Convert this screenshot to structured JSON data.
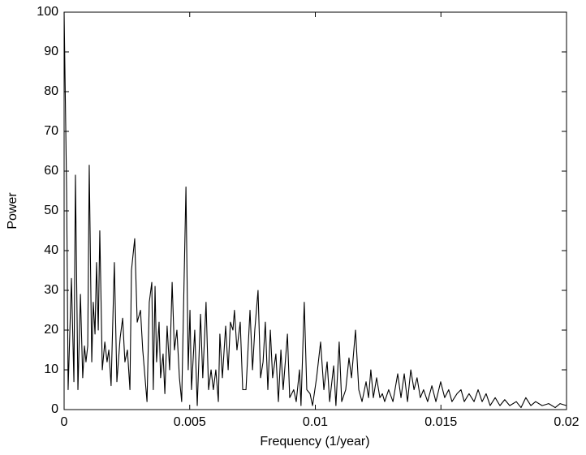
{
  "chart_data": {
    "type": "line",
    "xlabel": "Frequency (1/year)",
    "ylabel": "Power",
    "xlim": [
      0,
      0.02
    ],
    "ylim": [
      0,
      100
    ],
    "xticks": [
      0,
      0.005,
      0.01,
      0.015,
      0.02
    ],
    "yticks": [
      0,
      10,
      20,
      30,
      40,
      50,
      60,
      70,
      80,
      90,
      100
    ],
    "grid": false,
    "series": [
      {
        "color": "#000000",
        "x": [
          0,
          0.0001,
          0.00016,
          0.00029,
          0.00039,
          0.00045,
          0.00055,
          0.00065,
          0.00074,
          0.00081,
          0.00087,
          0.00094,
          0.001,
          0.0011,
          0.00116,
          0.00123,
          0.00129,
          0.00136,
          0.00142,
          0.00152,
          0.00162,
          0.00171,
          0.00178,
          0.00187,
          0.002,
          0.0021,
          0.00223,
          0.00233,
          0.00242,
          0.00252,
          0.00262,
          0.00268,
          0.00281,
          0.00291,
          0.00304,
          0.00313,
          0.0033,
          0.00339,
          0.00349,
          0.00355,
          0.00362,
          0.00368,
          0.00378,
          0.00384,
          0.00394,
          0.00401,
          0.0041,
          0.0042,
          0.0043,
          0.00439,
          0.00449,
          0.00459,
          0.00468,
          0.00485,
          0.00494,
          0.00501,
          0.00507,
          0.0052,
          0.0053,
          0.00543,
          0.00552,
          0.00565,
          0.00575,
          0.00585,
          0.00594,
          0.00604,
          0.00614,
          0.0062,
          0.0063,
          0.00643,
          0.00653,
          0.00662,
          0.00672,
          0.00678,
          0.00688,
          0.00701,
          0.00711,
          0.00724,
          0.0074,
          0.0075,
          0.00759,
          0.00772,
          0.00782,
          0.00792,
          0.00801,
          0.00811,
          0.00821,
          0.0083,
          0.00843,
          0.00853,
          0.00863,
          0.00872,
          0.00889,
          0.00898,
          0.00914,
          0.00924,
          0.00937,
          0.00943,
          0.00956,
          0.00966,
          0.00979,
          0.00989,
          0.01005,
          0.01021,
          0.01034,
          0.01047,
          0.01057,
          0.01073,
          0.01082,
          0.01095,
          0.01105,
          0.01121,
          0.01134,
          0.01144,
          0.0116,
          0.01173,
          0.01186,
          0.01202,
          0.01212,
          0.01221,
          0.01231,
          0.01244,
          0.01257,
          0.01267,
          0.01276,
          0.01292,
          0.01309,
          0.01328,
          0.01341,
          0.01354,
          0.01367,
          0.0138,
          0.01393,
          0.01405,
          0.01418,
          0.01431,
          0.01447,
          0.01464,
          0.0148,
          0.01499,
          0.01515,
          0.01531,
          0.01544,
          0.01564,
          0.0158,
          0.01593,
          0.01612,
          0.01632,
          0.01648,
          0.01664,
          0.0168,
          0.01696,
          0.01716,
          0.01735,
          0.01754,
          0.01774,
          0.018,
          0.01819,
          0.01838,
          0.01858,
          0.01877,
          0.01903,
          0.01929,
          0.01955,
          0.01974,
          0.02
        ],
        "values": [
          100,
          55,
          5,
          33,
          7,
          59,
          5,
          29,
          8,
          16,
          12,
          16,
          61.5,
          12,
          27,
          19,
          37,
          20,
          45,
          10,
          17,
          12,
          15,
          6,
          37,
          7,
          18,
          23,
          12,
          15,
          5,
          35,
          43,
          22,
          25,
          15,
          2,
          27,
          32,
          5,
          31,
          12,
          22,
          8,
          14,
          4,
          21,
          10,
          32,
          15,
          20,
          8,
          2,
          56,
          10,
          25,
          5,
          20,
          1,
          24,
          8,
          27,
          5,
          10,
          5,
          10,
          2,
          19,
          8,
          21,
          10,
          22,
          20,
          25,
          15,
          22,
          5,
          5,
          25,
          10,
          20,
          30,
          8,
          12,
          22,
          5,
          20,
          8,
          14,
          2,
          15,
          5,
          19,
          3,
          5,
          2,
          10,
          1,
          27,
          5,
          4,
          1,
          8,
          17,
          5,
          12,
          2,
          11,
          1,
          17,
          2,
          5,
          13,
          8,
          20,
          5,
          2,
          7,
          3,
          10,
          3,
          8,
          3,
          4,
          2,
          5,
          2,
          9,
          3,
          9,
          2,
          10,
          5,
          8,
          3,
          5,
          2,
          6,
          2,
          7,
          3,
          5,
          2,
          4,
          5,
          2,
          4,
          2,
          5,
          2,
          4,
          1,
          3,
          1,
          2.5,
          1,
          2,
          0.5,
          3,
          1,
          2,
          1,
          1.5,
          0.5,
          1.5,
          1
        ]
      }
    ]
  }
}
